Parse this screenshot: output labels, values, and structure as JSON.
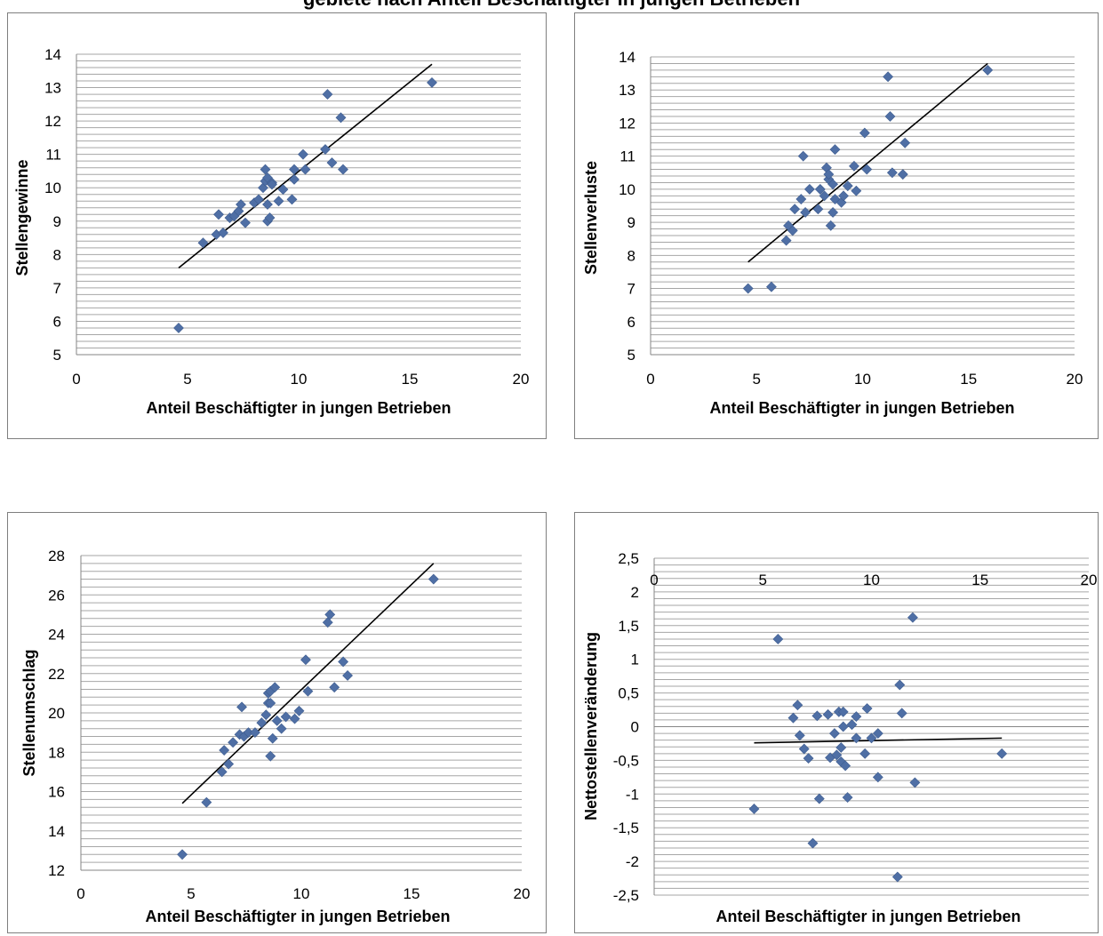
{
  "figure": {
    "title": "gebiete nach Anteil Beschäftigter in jungen Betrieben"
  },
  "colors": {
    "marker": "#4F6FA5",
    "gridline": "#A6A6A6",
    "axis": "#868686",
    "trend": "#000000"
  },
  "chart_data": [
    {
      "type": "scatter",
      "title": "",
      "xlabel": "Anteil Beschäftigter in jungen Betrieben",
      "ylabel": "Stellengewinne",
      "xlim": [
        0,
        20
      ],
      "ylim": [
        5,
        14
      ],
      "xticks": [
        "0",
        "5",
        "10",
        "15",
        "20"
      ],
      "yticks": [
        "5",
        "6",
        "7",
        "8",
        "9",
        "10",
        "11",
        "12",
        "13",
        "14"
      ],
      "trendline": [
        [
          4.6,
          7.6
        ],
        [
          16.0,
          13.7
        ]
      ],
      "series": [
        {
          "x": [
            4.6,
            5.7,
            6.3,
            6.4,
            6.6,
            6.9,
            7.1,
            7.3,
            7.4,
            7.6,
            8.0,
            8.2,
            8.4,
            8.5,
            8.5,
            8.6,
            8.6,
            8.6,
            8.7,
            8.8,
            8.8,
            9.1,
            9.3,
            9.7,
            9.8,
            9.8,
            10.2,
            10.3,
            11.2,
            11.3,
            11.5,
            11.9,
            12.0,
            16.0
          ],
          "y": [
            5.8,
            8.35,
            8.6,
            9.2,
            8.65,
            9.1,
            9.15,
            9.3,
            9.5,
            8.95,
            9.55,
            9.65,
            10.0,
            10.2,
            10.55,
            9.0,
            10.3,
            9.5,
            9.1,
            10.15,
            10.1,
            9.6,
            9.95,
            9.65,
            10.25,
            10.55,
            11.0,
            10.55,
            11.15,
            12.8,
            10.75,
            12.1,
            10.55,
            13.15
          ]
        }
      ]
    },
    {
      "type": "scatter",
      "title": "",
      "xlabel": "Anteil Beschäftigter in jungen Betrieben",
      "ylabel": "Stellenverluste",
      "xlim": [
        0,
        20
      ],
      "ylim": [
        5,
        14
      ],
      "xticks": [
        "0",
        "5",
        "10",
        "15",
        "20"
      ],
      "yticks": [
        "5",
        "6",
        "7",
        "8",
        "9",
        "10",
        "11",
        "12",
        "13",
        "14"
      ],
      "trendline": [
        [
          4.6,
          7.8
        ],
        [
          15.9,
          13.8
        ]
      ],
      "series": [
        {
          "x": [
            4.6,
            5.7,
            6.4,
            6.5,
            6.7,
            6.8,
            7.1,
            7.2,
            7.3,
            7.5,
            7.9,
            8.0,
            8.2,
            8.3,
            8.4,
            8.4,
            8.5,
            8.6,
            8.6,
            8.7,
            8.7,
            9.0,
            9.1,
            9.3,
            9.6,
            9.7,
            10.1,
            10.2,
            11.2,
            11.3,
            11.4,
            11.9,
            12.0,
            15.9
          ],
          "y": [
            7.0,
            7.05,
            8.45,
            8.9,
            8.75,
            9.4,
            9.7,
            11.0,
            9.3,
            10.0,
            9.4,
            10.0,
            9.8,
            10.65,
            10.3,
            10.45,
            8.9,
            9.3,
            10.15,
            9.7,
            11.2,
            9.6,
            9.8,
            10.1,
            10.7,
            9.95,
            11.7,
            10.6,
            13.4,
            12.2,
            10.5,
            10.45,
            11.4,
            13.6
          ]
        }
      ]
    },
    {
      "type": "scatter",
      "title": "",
      "xlabel": "Anteil Beschäftigter in jungen Betrieben",
      "ylabel": "Stellenumschlag",
      "xlim": [
        0,
        20
      ],
      "ylim": [
        12,
        28
      ],
      "xticks": [
        "0",
        "5",
        "10",
        "15",
        "20"
      ],
      "yticks": [
        "12",
        "14",
        "16",
        "18",
        "20",
        "22",
        "24",
        "26",
        "28"
      ],
      "trendline": [
        [
          4.6,
          15.4
        ],
        [
          16.0,
          27.6
        ]
      ],
      "series": [
        {
          "x": [
            4.6,
            5.7,
            6.4,
            6.5,
            6.7,
            6.9,
            7.2,
            7.3,
            7.4,
            7.6,
            7.9,
            8.2,
            8.4,
            8.5,
            8.5,
            8.6,
            8.6,
            8.6,
            8.7,
            8.8,
            8.9,
            9.1,
            9.3,
            9.7,
            9.9,
            10.2,
            10.3,
            11.2,
            11.3,
            11.5,
            11.9,
            12.1,
            16.0
          ],
          "y": [
            12.8,
            15.45,
            17.0,
            18.1,
            17.4,
            18.5,
            18.9,
            20.3,
            18.8,
            19.0,
            19.0,
            19.5,
            19.9,
            20.5,
            21.0,
            17.8,
            21.1,
            20.5,
            18.7,
            21.3,
            19.6,
            19.2,
            19.8,
            19.7,
            20.1,
            22.7,
            21.1,
            24.6,
            25.0,
            21.3,
            22.6,
            21.9,
            26.8
          ]
        }
      ]
    },
    {
      "type": "scatter",
      "title": "",
      "xlabel": "Anteil Beschäftigter in jungen Betrieben",
      "ylabel": "Nettostellenveränderung",
      "xlim": [
        0,
        20
      ],
      "ylim": [
        -2.5,
        2.5
      ],
      "xticks": [
        "0",
        "5",
        "10",
        "15",
        "20"
      ],
      "yticks": [
        "-2,5",
        "-2",
        "-1,5",
        "-1",
        "-0,5",
        "0",
        "0,5",
        "1",
        "1,5",
        "2",
        "2,5"
      ],
      "trendline": [
        [
          4.6,
          -0.24
        ],
        [
          16.0,
          -0.17
        ]
      ],
      "series": [
        {
          "x": [
            4.6,
            5.7,
            6.4,
            6.6,
            6.7,
            6.9,
            7.1,
            7.3,
            7.5,
            7.6,
            8.0,
            8.1,
            8.3,
            8.4,
            8.5,
            8.6,
            8.6,
            8.7,
            8.7,
            8.8,
            8.9,
            9.1,
            9.3,
            9.3,
            9.7,
            9.8,
            10.0,
            10.3,
            10.3,
            11.2,
            11.3,
            11.4,
            11.9,
            12.0,
            16.0
          ],
          "y": [
            -1.22,
            1.3,
            0.13,
            0.32,
            -0.13,
            -0.33,
            -0.47,
            -1.73,
            0.16,
            -1.07,
            0.18,
            -0.46,
            -0.1,
            -0.42,
            0.22,
            -0.31,
            -0.52,
            0.22,
            0.0,
            -0.58,
            -1.05,
            0.03,
            0.15,
            -0.17,
            -0.4,
            0.27,
            -0.17,
            -0.1,
            -0.75,
            -2.23,
            0.62,
            0.2,
            1.62,
            -0.83,
            -0.4
          ]
        }
      ]
    }
  ]
}
